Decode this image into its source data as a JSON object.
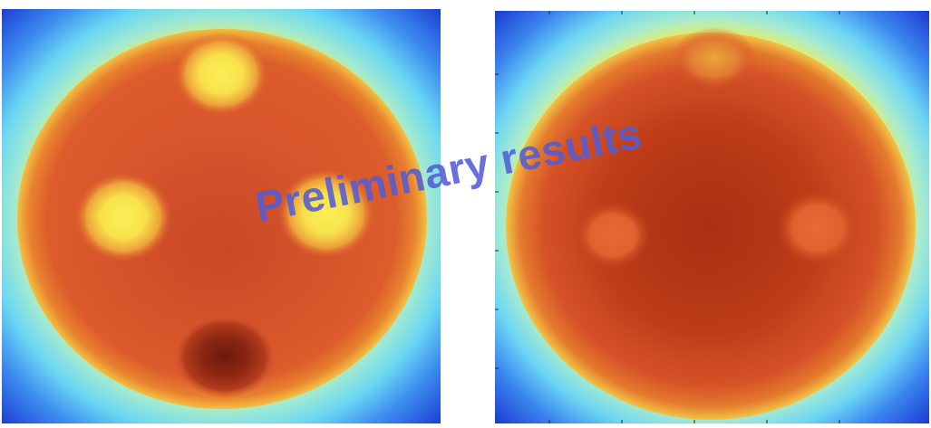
{
  "watermark": {
    "text": "Preliminary results",
    "color": "#525cd6"
  },
  "panels": [
    {
      "name": "left-phantom-reconstruction",
      "inclusions": 4
    },
    {
      "name": "right-phantom-reconstruction",
      "inclusions": 3
    }
  ],
  "colors": {
    "background_blue": "#1a3fd6",
    "ring_cyan": "#7fe6f0",
    "ring_yellow": "#f4ee5a",
    "disc_orange": "#d9532a",
    "disc_dark": "#b83818",
    "inclusion_bright": "#f7e04c",
    "inclusion_dark": "#7a1f10"
  }
}
